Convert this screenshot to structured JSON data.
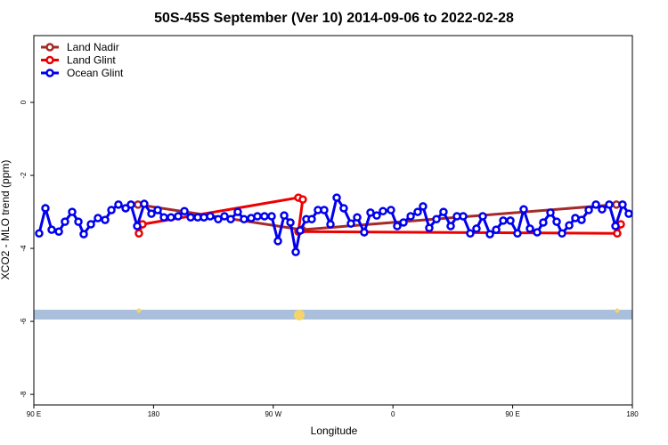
{
  "chart_data": {
    "type": "line",
    "title": "50S-45S September (Ver 10)   2014-09-06 to 2022-02-28",
    "xlabel": "Longitude",
    "ylabel": "XCO2 - MLO trend (ppm)",
    "xlim": [
      90,
      540
    ],
    "ylim": [
      -8.29,
      1.83
    ],
    "xticks": [
      {
        "value": 90,
        "label": "90 E"
      },
      180,
      {
        "value": 270,
        "label": "90 W"
      },
      {
        "value": 360,
        "label": "0"
      },
      {
        "value": 450,
        "label": "90 E"
      },
      {
        "value": 540,
        "label": "180"
      }
    ],
    "yticks": [
      0,
      -2,
      -4,
      -6,
      -8
    ],
    "legend": "top-left",
    "series": [
      {
        "name": "Land Nadir",
        "color": "#a52a2a",
        "x": [
          168.3,
          291.6,
          528.0
        ],
        "values": [
          -2.8,
          -3.49,
          -2.8
        ]
      },
      {
        "name": "Land Glint",
        "color": "#ee0000",
        "x": [
          169.0,
          171.7,
          288.9,
          292.2,
          288.9,
          528.6,
          531.3
        ],
        "values": [
          -3.59,
          -3.34,
          -2.61,
          -2.66,
          -3.54,
          -3.59,
          -3.34
        ]
      },
      {
        "name": "Ocean Glint",
        "color": "#0000ee",
        "x": [
          94.0,
          98.7,
          103.4,
          108.8,
          113.4,
          118.8,
          123.5,
          127.5,
          132.9,
          138.2,
          143.6,
          148.3,
          153.6,
          159.0,
          163.0,
          167.7,
          173.0,
          178.4,
          183.1,
          187.8,
          193.1,
          198.5,
          203.2,
          207.9,
          213.2,
          217.9,
          222.6,
          228.6,
          233.3,
          238.0,
          243.3,
          248.0,
          253.4,
          258.1,
          263.4,
          268.8,
          273.5,
          278.2,
          282.9,
          286.9,
          290.2,
          294.9,
          298.9,
          303.6,
          308.3,
          313.0,
          317.7,
          323.0,
          328.4,
          333.1,
          338.4,
          343.1,
          347.8,
          352.5,
          358.5,
          363.2,
          367.9,
          373.3,
          378.6,
          382.6,
          387.3,
          392.7,
          398.0,
          403.4,
          408.1,
          412.8,
          418.1,
          422.8,
          427.5,
          432.9,
          437.6,
          442.9,
          448.3,
          453.6,
          458.3,
          463.0,
          468.4,
          473.0,
          478.4,
          483.1,
          487.1,
          492.5,
          497.1,
          501.8,
          507.2,
          512.6,
          517.2,
          522.6,
          527.3,
          532.6,
          537.3
        ],
        "values": [
          -3.59,
          -2.9,
          -3.49,
          -3.54,
          -3.27,
          -3.0,
          -3.27,
          -3.61,
          -3.34,
          -3.17,
          -3.22,
          -2.95,
          -2.8,
          -2.9,
          -2.8,
          -3.39,
          -2.78,
          -3.05,
          -2.95,
          -3.15,
          -3.15,
          -3.12,
          -2.98,
          -3.15,
          -3.15,
          -3.15,
          -3.12,
          -3.2,
          -3.12,
          -3.2,
          -3.0,
          -3.2,
          -3.17,
          -3.12,
          -3.12,
          -3.12,
          -3.8,
          -3.1,
          -3.29,
          -4.1,
          -3.51,
          -3.2,
          -3.2,
          -2.95,
          -2.95,
          -3.34,
          -2.61,
          -2.9,
          -3.32,
          -3.15,
          -3.56,
          -3.02,
          -3.1,
          -2.98,
          -2.95,
          -3.39,
          -3.29,
          -3.12,
          -3.0,
          -2.85,
          -3.44,
          -3.2,
          -3.0,
          -3.39,
          -3.12,
          -3.12,
          -3.59,
          -3.46,
          -3.12,
          -3.61,
          -3.49,
          -3.24,
          -3.24,
          -3.59,
          -2.93,
          -3.46,
          -3.56,
          -3.29,
          -3.02,
          -3.27,
          -3.59,
          -3.37,
          -3.17,
          -3.22,
          -2.95,
          -2.8,
          -2.93,
          -2.8,
          -3.39,
          -2.8,
          -3.05
        ]
      }
    ]
  }
}
